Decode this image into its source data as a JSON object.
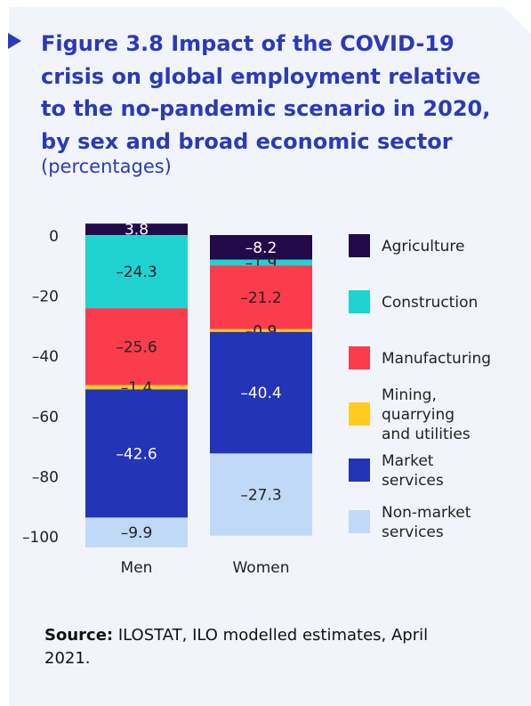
{
  "figure": {
    "title": "Figure 3.8  Impact of the COVID-19 crisis on global employment relative to the no-pandemic scenario in 2020, by sex and broad economic sector",
    "subtitle": "(percentages)"
  },
  "source": {
    "label": "Source:",
    "text": "ILOSTAT, ILO modelled estimates, April 2021."
  },
  "colors": {
    "background": "#f1f5fb",
    "title": "#2b3ab8",
    "agriculture": "#22094a",
    "construction": "#1fd3d3",
    "manufacturing": "#fa3c4c",
    "mining": "#ffcb1f",
    "market_services": "#2234b8",
    "non_market_services": "#c0d9f6"
  },
  "chart_data": {
    "type": "bar",
    "stacked": true,
    "categories": [
      "Men",
      "Women"
    ],
    "ylim": [
      -100,
      3.8
    ],
    "yticks": [
      0,
      -20,
      -40,
      -60,
      -80,
      -100
    ],
    "ytick_labels": [
      "0",
      "–20",
      "–40",
      "–60",
      "–80",
      "–100"
    ],
    "legend_position": "right",
    "series": [
      {
        "name": "Agriculture",
        "color": "#22094a",
        "values": [
          3.8,
          -8.2
        ],
        "labels": [
          "3.8",
          "–8.2"
        ]
      },
      {
        "name": "Construction",
        "color": "#1fd3d3",
        "values": [
          -24.3,
          -1.9
        ],
        "labels": [
          "–24.3",
          "–1.9"
        ]
      },
      {
        "name": "Manufacturing",
        "color": "#fa3c4c",
        "values": [
          -25.6,
          -21.2
        ],
        "labels": [
          "–25.6",
          "–21.2"
        ]
      },
      {
        "name": "Mining, quarrying and utilities",
        "color": "#ffcb1f",
        "values": [
          -1.4,
          -0.9
        ],
        "labels": [
          "–1.4",
          "–0.9"
        ]
      },
      {
        "name": "Market services",
        "color": "#2234b8",
        "values": [
          -42.6,
          -40.4
        ],
        "labels": [
          "–42.6",
          "–40.4"
        ]
      },
      {
        "name": "Non-market services",
        "color": "#c0d9f6",
        "values": [
          -9.9,
          -27.3
        ],
        "labels": [
          "–9.9",
          "–27.3"
        ]
      }
    ]
  }
}
